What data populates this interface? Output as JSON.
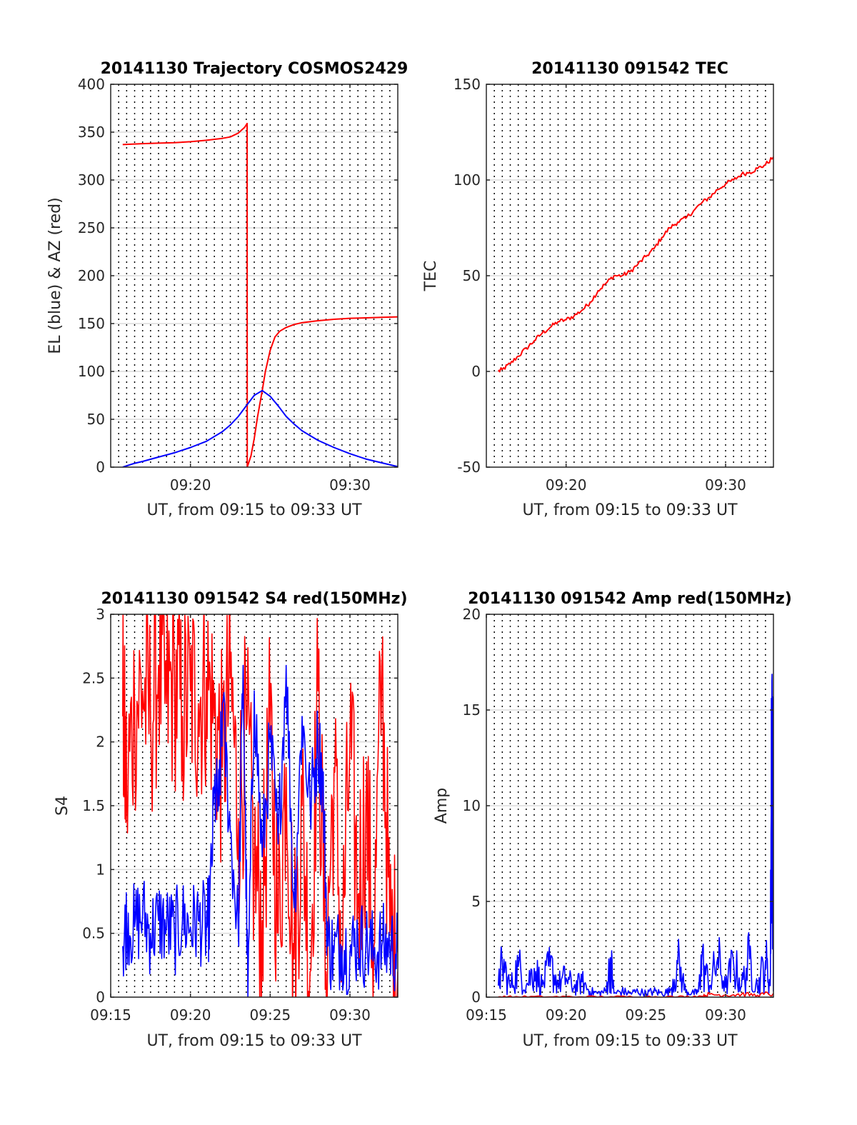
{
  "chart_data": [
    {
      "type": "line",
      "title": "20141130 Trajectory COSMOS2429",
      "xlabel": "UT, from 09:15 to 09:33 UT",
      "ylabel": "EL (blue) & AZ (red)",
      "xlim_minutes": [
        15,
        33
      ],
      "ylim": [
        0,
        400
      ],
      "yticks": [
        0,
        50,
        100,
        150,
        200,
        250,
        300,
        350,
        400
      ],
      "xticks": [
        {
          "v": 20,
          "label": "09:20"
        },
        {
          "v": 30,
          "label": "09:30"
        }
      ],
      "grid": true,
      "series": [
        {
          "color": "#ff0000",
          "x": [
            15.75,
            17,
            18,
            19,
            20,
            21,
            22,
            22.5,
            23,
            23.4,
            23.55,
            23.56,
            23.8,
            24,
            24.2,
            24.5,
            24.7,
            25,
            25.3,
            25.6,
            26,
            26.5,
            27,
            28,
            29,
            30,
            31,
            32,
            33
          ],
          "y": [
            337,
            338,
            338.5,
            339,
            340,
            341.5,
            343.5,
            345,
            349,
            355,
            359,
            0,
            12,
            30,
            52,
            80,
            100,
            122,
            136,
            142,
            146,
            149,
            151,
            153,
            154.5,
            155.5,
            156,
            156.5,
            157
          ]
        },
        {
          "color": "#0000ff",
          "x": [
            15.75,
            16.5,
            17,
            18,
            19,
            20,
            21,
            22,
            22.5,
            23,
            23.5,
            24,
            24.5,
            25,
            25.5,
            26,
            26.5,
            27,
            28,
            29,
            30,
            31,
            32,
            33
          ],
          "y": [
            0,
            4,
            6,
            10.5,
            15,
            20.5,
            27,
            37,
            44,
            53,
            64,
            75,
            80,
            74,
            64,
            53,
            45,
            38,
            28,
            20.5,
            14,
            8.5,
            4.5,
            0.5
          ]
        }
      ]
    },
    {
      "type": "line",
      "title": "20141130 091542 TEC",
      "xlabel": "UT, from 09:15 to 09:33 UT",
      "ylabel": "TEC",
      "xlim_minutes": [
        15,
        33
      ],
      "ylim": [
        -50,
        150
      ],
      "yticks": [
        -50,
        0,
        50,
        100,
        150
      ],
      "xticks": [
        {
          "v": 20,
          "label": "09:20"
        },
        {
          "v": 30,
          "label": "09:30"
        }
      ],
      "grid": true,
      "series": [
        {
          "color": "#ff0000",
          "x": [
            15.75,
            16,
            16.5,
            17,
            17.5,
            18,
            18.5,
            19,
            19.5,
            20,
            20.5,
            21,
            21.5,
            22,
            22.5,
            23,
            23.5,
            24,
            24.5,
            25,
            25.5,
            26,
            26.5,
            27,
            27.5,
            28,
            28.5,
            29,
            29.5,
            30,
            30.5,
            31,
            31.5,
            32,
            32.5,
            33
          ],
          "y": [
            0,
            1,
            4,
            8,
            12,
            16,
            20,
            23,
            26,
            27,
            29,
            32,
            36,
            42,
            46,
            50,
            50,
            52,
            56,
            60,
            64,
            70,
            75,
            78,
            80,
            84,
            88,
            91,
            95,
            98,
            100,
            103,
            104,
            106,
            108,
            112
          ]
        }
      ]
    },
    {
      "type": "line",
      "title": "20141130 091542 S4 red(150MHz)",
      "xlabel": "UT, from 09:15 to 09:33 UT",
      "ylabel": "S4",
      "xlim_minutes": [
        15,
        33
      ],
      "ylim": [
        0,
        3
      ],
      "yticks": [
        0,
        0.5,
        1,
        1.5,
        2,
        2.5,
        3
      ],
      "xticks": [
        {
          "v": 15,
          "label": "09:15"
        },
        {
          "v": 20,
          "label": "09:20"
        },
        {
          "v": 25,
          "label": "09:25"
        },
        {
          "v": 30,
          "label": "09:30"
        }
      ],
      "grid": true,
      "series": [
        {
          "color": "#ff0000",
          "x": [
            15.75,
            16,
            16.5,
            17,
            17.5,
            18,
            18.5,
            19,
            19.5,
            20,
            20.5,
            21,
            21.5,
            22,
            22.5,
            23,
            23.5,
            24,
            24.5,
            25,
            25.5,
            26,
            26.5,
            27,
            27.5,
            28,
            28.5,
            29,
            29.5,
            30,
            30.5,
            31,
            31.5,
            32,
            32.5,
            33
          ],
          "y": [
            2.2,
            1.6,
            2.3,
            2.4,
            2.2,
            2.6,
            2.3,
            2.5,
            2.2,
            2.4,
            2.3,
            2.5,
            2.2,
            1.8,
            2.5,
            1.4,
            2.1,
            1.0,
            0.6,
            2.1,
            0.5,
            1.8,
            0.3,
            1.5,
            0.2,
            2.4,
            0.2,
            1.8,
            0.3,
            2.0,
            0.8,
            1.5,
            0.4,
            2.6,
            0.5,
            0.2
          ]
        },
        {
          "color": "#0000ff",
          "x": [
            15.75,
            16,
            16.5,
            17,
            17.5,
            18,
            18.5,
            19,
            19.5,
            20,
            20.5,
            21,
            21.2,
            21.5,
            21.8,
            22,
            22.5,
            23,
            23.3,
            23.6,
            24,
            24.5,
            25,
            25.5,
            26,
            26.5,
            27,
            27.5,
            28,
            28.3,
            28.6,
            29,
            29.5,
            30,
            30.5,
            31,
            31.5,
            32,
            32.5,
            33
          ],
          "y": [
            0.4,
            0.6,
            0.55,
            0.65,
            0.5,
            0.6,
            0.55,
            0.5,
            0.6,
            0.55,
            0.6,
            0.55,
            0.65,
            1.6,
            1.5,
            2.3,
            1.3,
            0.5,
            2.6,
            0.0,
            2.4,
            1.1,
            2.0,
            1.2,
            2.6,
            0.7,
            2.2,
            1.5,
            2.0,
            1.7,
            0.4,
            0.35,
            0.4,
            0.35,
            0.45,
            0.4,
            0.35,
            0.4,
            0.4,
            0.35
          ]
        }
      ]
    },
    {
      "type": "line",
      "title": "20141130 091542 Amp red(150MHz)",
      "xlabel": "UT, from 09:15 to 09:33 UT",
      "ylabel": "Amp",
      "xlim_minutes": [
        15,
        33
      ],
      "ylim": [
        0,
        20
      ],
      "yticks": [
        0,
        5,
        10,
        15,
        20
      ],
      "xticks": [
        {
          "v": 15,
          "label": "09:15"
        },
        {
          "v": 20,
          "label": "09:20"
        },
        {
          "v": 25,
          "label": "09:25"
        },
        {
          "v": 30,
          "label": "09:30"
        }
      ],
      "grid": true,
      "series": [
        {
          "color": "#0000ff",
          "x": [
            15.75,
            16,
            16.5,
            17,
            17.5,
            18,
            18.5,
            19,
            19.5,
            20,
            20.5,
            21,
            21.5,
            22,
            22.5,
            22.8,
            23,
            23.5,
            24,
            24.5,
            25,
            25.5,
            26,
            26.5,
            27,
            27.5,
            28,
            28.3,
            28.5,
            29,
            29.5,
            30,
            30.5,
            31,
            31.5,
            32,
            32.5,
            32.8,
            32.9,
            33
          ],
          "y": [
            0.6,
            1.8,
            0.5,
            1.6,
            0.6,
            1.5,
            0.6,
            1.6,
            0.7,
            1.0,
            0.5,
            0.8,
            0.3,
            0.2,
            0.3,
            1.9,
            0.2,
            0.3,
            0.2,
            0.3,
            0.2,
            0.3,
            0.2,
            0.3,
            1.8,
            0.3,
            0.2,
            0.3,
            1.9,
            0.6,
            2.0,
            0.5,
            1.8,
            0.6,
            2.0,
            0.5,
            1.9,
            0.6,
            16.5,
            1.5
          ]
        },
        {
          "color": "#ff0000",
          "x": [
            15.75,
            17,
            19,
            21,
            23,
            25,
            27,
            28.5,
            29,
            30,
            31,
            32,
            33
          ],
          "y": [
            0.02,
            0.02,
            0.02,
            0.02,
            0.02,
            0.02,
            0.02,
            0.05,
            0.15,
            0.1,
            0.15,
            0.1,
            0.2
          ]
        }
      ]
    }
  ]
}
